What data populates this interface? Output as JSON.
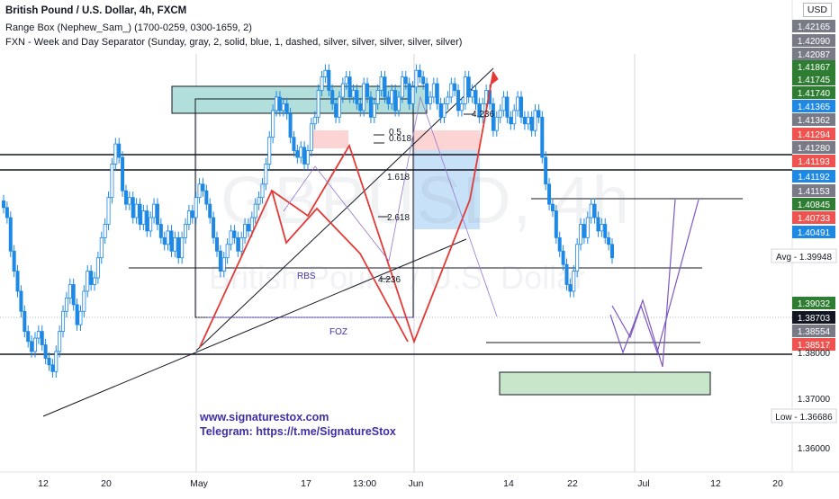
{
  "header": {
    "title": "British Pound / U.S. Dollar, 4h, FXCM",
    "indicator1": "Range Box (Nephew_Sam_) (1700-0259, 0300-1659, 2)",
    "indicator2": "FXN - Week and Day Separator (Sunday, gray, 2, solid, blue, 1, dashed, silver, silver, silver, silver, silver)",
    "currency": "USD"
  },
  "watermark": {
    "symbol": "GBPUSD, 4h",
    "name": "British Pound / U.S. Dollar"
  },
  "branding": {
    "website": "www.signaturestox.com",
    "telegram": "Telegram: https://t.me/SignatureStox"
  },
  "colors": {
    "up": "#1e88e5",
    "down": "#1e88e5",
    "bull_arrow": "#f44336",
    "bear_path": "#e53935",
    "projection": "#7e57c2",
    "supply_zone": "#b2dfdb",
    "demand_zone": "#c8e6c9"
  },
  "chart_data": {
    "type": "candlestick",
    "symbol": "GBPUSD",
    "timeframe": "4h",
    "ylim": [
      1.355,
      1.4255
    ],
    "x_ticks": [
      "12",
      "20",
      "May",
      "17",
      "13:00",
      "Jun",
      "14",
      "22",
      "Jul",
      "12",
      "20"
    ],
    "price_labels": [
      {
        "value": "1.42165",
        "bg": "#787b86"
      },
      {
        "value": "1.42090",
        "bg": "#787b86"
      },
      {
        "value": "1.42087",
        "bg": "#787b86"
      },
      {
        "value": "1.41867",
        "bg": "#2e7d32"
      },
      {
        "value": "1.41745",
        "bg": "#2e7d32"
      },
      {
        "value": "1.41740",
        "bg": "#2e7d32"
      },
      {
        "value": "1.41365",
        "bg": "#1e88e5"
      },
      {
        "value": "1.41362",
        "bg": "#787b86"
      },
      {
        "value": "1.41294",
        "bg": "#ef5350"
      },
      {
        "value": "1.41280",
        "bg": "#787b86"
      },
      {
        "value": "1.41193",
        "bg": "#ef5350"
      },
      {
        "value": "1.41192",
        "bg": "#1e88e5"
      },
      {
        "value": "1.41153",
        "bg": "#787b86"
      },
      {
        "value": "1.40845",
        "bg": "#2e7d32"
      },
      {
        "value": "1.40733",
        "bg": "#ef5350"
      },
      {
        "value": "1.40491",
        "bg": "#1e88e5"
      },
      {
        "value": "Avg - 1.39948",
        "bg": "#ffffff"
      },
      {
        "value": "1.39032",
        "bg": "#2e7d32"
      },
      {
        "value": "1.38703",
        "bg": "#131722"
      },
      {
        "value": "1.38554",
        "bg": "#787b86"
      },
      {
        "value": "1.38517",
        "bg": "#ef5350"
      },
      {
        "value": "1.38000",
        "bg": "#ffffff"
      },
      {
        "value": "1.37000",
        "bg": "#ffffff"
      },
      {
        "value": "Low - 1.36686",
        "bg": "#ffffff"
      },
      {
        "value": "1.36000",
        "bg": "#ffffff"
      }
    ],
    "drawings": {
      "fib_labels": [
        "0.5",
        "0.618",
        "1.618",
        "2.618",
        "4.236",
        "4.236"
      ],
      "zone_labels": [
        "RBS",
        "FOZ"
      ]
    },
    "closes": [
      1.3945,
      1.393,
      1.388,
      1.385,
      1.382,
      1.379,
      1.376,
      1.3745,
      1.373,
      1.375,
      1.376,
      1.374,
      1.372,
      1.371,
      1.37,
      1.373,
      1.376,
      1.379,
      1.381,
      1.383,
      1.38,
      1.377,
      1.379,
      1.382,
      1.385,
      1.383,
      1.384,
      1.387,
      1.39,
      1.392,
      1.396,
      1.401,
      1.404,
      1.402,
      1.397,
      1.395,
      1.396,
      1.393,
      1.395,
      1.392,
      1.394,
      1.391,
      1.393,
      1.395,
      1.392,
      1.39,
      1.389,
      1.391,
      1.388,
      1.39,
      1.387,
      1.39,
      1.392,
      1.394,
      1.393,
      1.396,
      1.398,
      1.397,
      1.395,
      1.393,
      1.39,
      1.388,
      1.385,
      1.387,
      1.389,
      1.391,
      1.39,
      1.388,
      1.39,
      1.392,
      1.391,
      1.393,
      1.395,
      1.396,
      1.398,
      1.401,
      1.405,
      1.409,
      1.411,
      1.409,
      1.41,
      1.4085,
      1.405,
      1.403,
      1.402,
      1.4035,
      1.401,
      1.403,
      1.407,
      1.408,
      1.412,
      1.414,
      1.415,
      1.412,
      1.41,
      1.408,
      1.411,
      1.413,
      1.414,
      1.411,
      1.412,
      1.41,
      1.409,
      1.413,
      1.411,
      1.408,
      1.41,
      1.412,
      1.414,
      1.411,
      1.41,
      1.412,
      1.409,
      1.411,
      1.414,
      1.413,
      1.41,
      1.4125,
      1.415,
      1.414,
      1.413,
      1.41,
      1.411,
      1.413,
      1.41,
      1.408,
      1.41,
      1.411,
      1.413,
      1.412,
      1.409,
      1.41,
      1.414,
      1.411,
      1.412,
      1.41,
      1.408,
      1.41,
      1.412,
      1.41,
      1.406,
      1.408,
      1.409,
      1.411,
      1.408,
      1.407,
      1.409,
      1.411,
      1.408,
      1.407,
      1.408,
      1.406,
      1.409,
      1.408,
      1.402,
      1.398,
      1.395,
      1.394,
      1.39,
      1.388,
      1.386,
      1.383,
      1.382,
      1.385,
      1.389,
      1.392,
      1.39,
      1.393,
      1.395,
      1.393,
      1.391,
      1.392,
      1.39,
      1.389,
      1.387
    ]
  }
}
